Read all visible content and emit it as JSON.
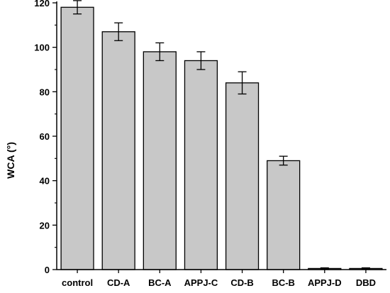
{
  "chart_data": {
    "type": "bar",
    "title": "",
    "xlabel": "",
    "ylabel": "WCA (°)",
    "ylim": [
      0,
      120
    ],
    "yticks": [
      0,
      20,
      40,
      60,
      80,
      100,
      120
    ],
    "grid": false,
    "categories": [
      "control",
      "CD-A",
      "BC-A",
      "APPJ-C",
      "CD-B",
      "BC-B",
      "APPJ-D",
      "DBD"
    ],
    "values": [
      118,
      107,
      98,
      94,
      84,
      49,
      0.5,
      0.5
    ],
    "errors": [
      3,
      4,
      4,
      4,
      5,
      2,
      0.3,
      0.3
    ],
    "colors": {
      "bar_fill": "#c8c8c8",
      "bar_stroke": "#000000",
      "axis": "#000000"
    }
  }
}
